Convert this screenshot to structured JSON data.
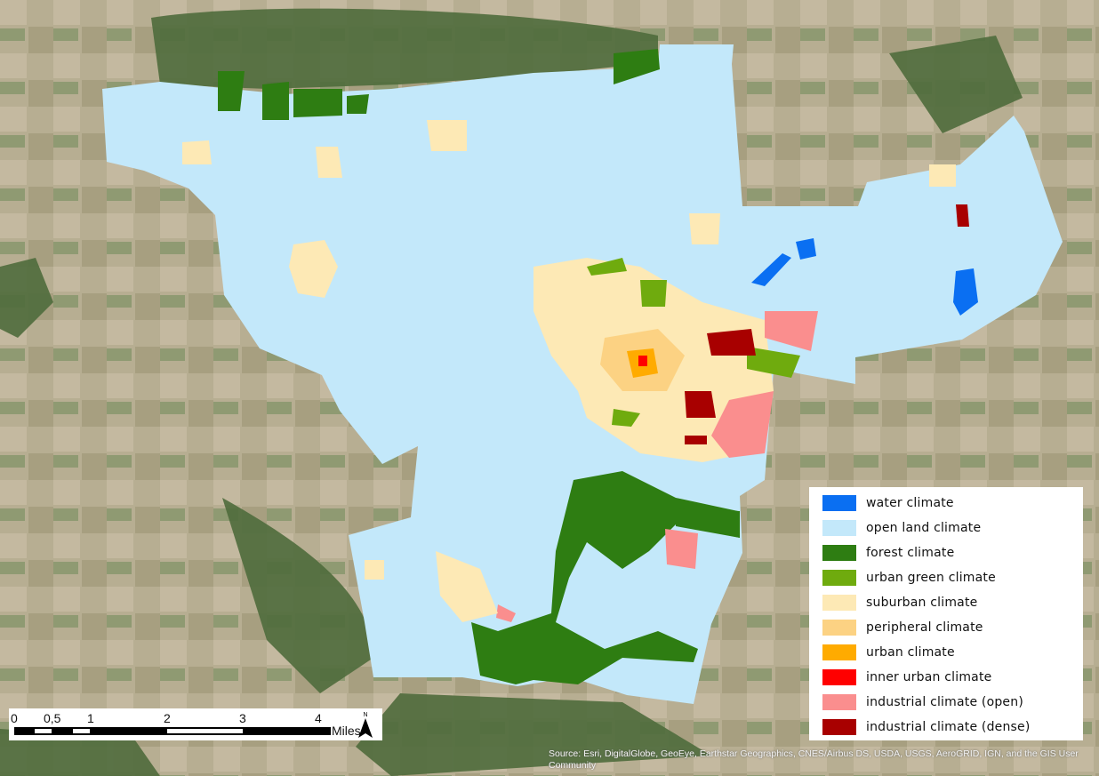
{
  "map": {
    "basemap": "satellite imagery",
    "colors": {
      "basemap_fields": "#b5ad8f",
      "basemap_forest": "#4f6b3c"
    }
  },
  "legend": {
    "items": [
      {
        "label": "water climate",
        "color": "#0a6ff2"
      },
      {
        "label": "open land climate",
        "color": "#c3e8fa"
      },
      {
        "label": "forest climate",
        "color": "#2e7d12"
      },
      {
        "label": "urban green climate",
        "color": "#6fab0e"
      },
      {
        "label": "suburban climate",
        "color": "#fde9b5"
      },
      {
        "label": "peripheral climate",
        "color": "#fcd283"
      },
      {
        "label": "urban climate",
        "color": "#ffab00"
      },
      {
        "label": "inner urban climate",
        "color": "#ff0000"
      },
      {
        "label": "industrial climate (open)",
        "color": "#fa8e8e"
      },
      {
        "label": "industrial climate  (dense)",
        "color": "#a80000"
      }
    ]
  },
  "scalebar": {
    "ticks": [
      "0",
      "0,5",
      "1",
      "2",
      "3",
      "4"
    ],
    "unit": "Miles",
    "north_label": "N"
  },
  "attribution": "Source: Esri, DigitalGlobe, GeoEye, Earthstar Geographics, CNES/Airbus DS, USDA, USGS, AeroGRID, IGN, and the GIS User Community"
}
